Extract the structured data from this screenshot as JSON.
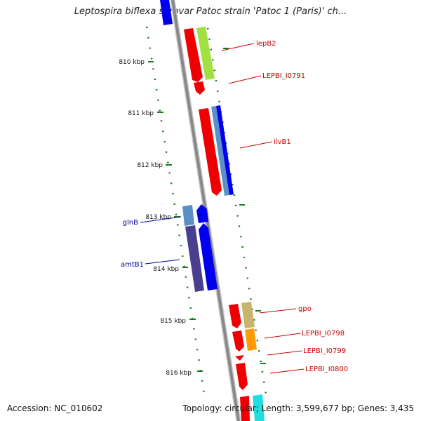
{
  "title": "Leptospira biflexa serovar Patoc strain 'Patoc 1 (Paris)' ch...",
  "footer": {
    "accession": "Accession: NC_010602",
    "summary": "Topology: circular; Length: 3,599,677 bp; Genes: 3,435"
  },
  "colors": {
    "backbone": "#8c8c8c",
    "tick": "#1a7f1a",
    "forward_label": "#cc0000",
    "reverse_label": "#000099"
  },
  "ticks": [
    {
      "label": "810 kbp"
    },
    {
      "label": "811 kbp"
    },
    {
      "label": "812 kbp"
    },
    {
      "label": "813 kbp"
    },
    {
      "label": "814 kbp"
    },
    {
      "label": "815 kbp"
    },
    {
      "label": "816 kbp"
    }
  ],
  "gene_labels": [
    {
      "text": "lepB2",
      "strand": "forward"
    },
    {
      "text": "LEPBI_I0791",
      "strand": "forward"
    },
    {
      "text": "ilvB1",
      "strand": "forward"
    },
    {
      "text": "glnB",
      "strand": "reverse"
    },
    {
      "text": "amtB1",
      "strand": "reverse"
    },
    {
      "text": "gpo",
      "strand": "forward"
    },
    {
      "text": "LEPBI_I0798",
      "strand": "forward"
    },
    {
      "text": "LEPBI_I0799",
      "strand": "forward"
    },
    {
      "text": "LEPBI_I0800",
      "strand": "forward"
    }
  ]
}
